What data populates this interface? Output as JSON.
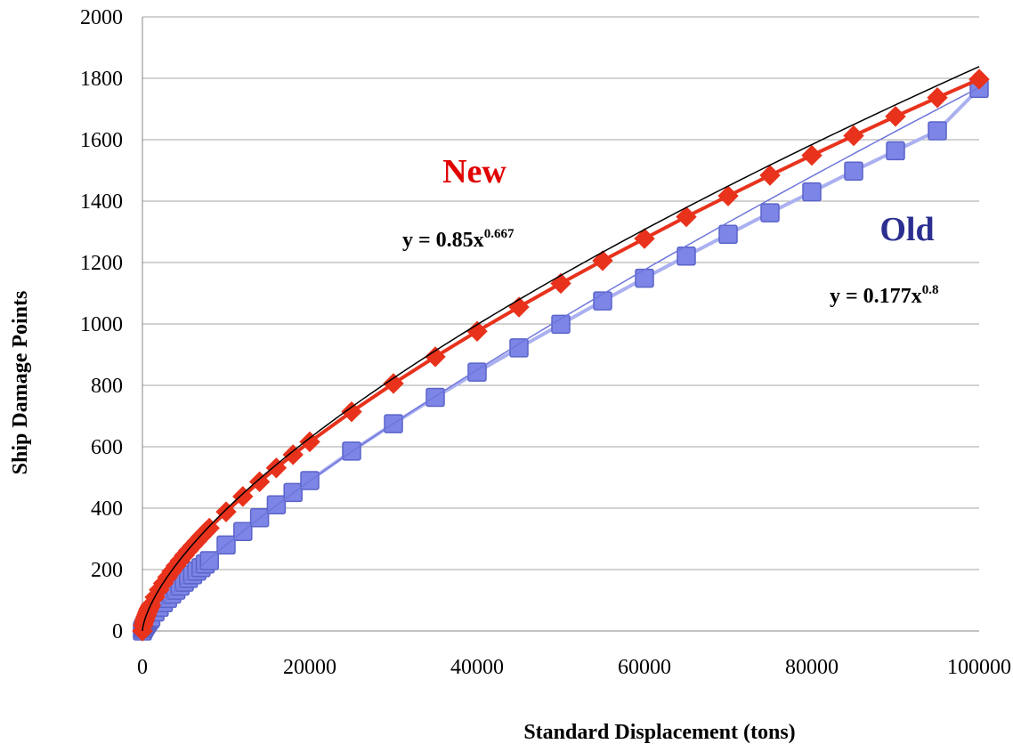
{
  "chart_data": {
    "type": "scatter",
    "title": "",
    "xlabel": "Standard Displacement (tons)",
    "ylabel": "Ship Damage Points",
    "xlim": [
      0,
      100000
    ],
    "ylim": [
      0,
      2000
    ],
    "x_ticks": [
      "0",
      "20000",
      "40000",
      "60000",
      "80000",
      "100000"
    ],
    "y_ticks": [
      "0",
      "200",
      "400",
      "600",
      "800",
      "1000",
      "1200",
      "1400",
      "1600",
      "1800",
      "2000"
    ],
    "grid": "horizontal",
    "colors": {
      "new_marker": "#e8321c",
      "new_line": "#e8321c",
      "new_trend": "#000000",
      "old_marker": "#7d86e6",
      "old_marker_edge": "#5a63c8",
      "old_line": "#aab0f0",
      "old_trend": "#6e76dc",
      "new_label": "#e00000",
      "old_label": "#2b2f90",
      "grid": "#a6a6a6"
    },
    "annotations": [
      {
        "id": "new",
        "text": "New",
        "color": "#e00000"
      },
      {
        "id": "old",
        "text": "Old",
        "color": "#2b2f90"
      },
      {
        "id": "new_eq",
        "base": "y = 0.85x",
        "exp": "0.667"
      },
      {
        "id": "old_eq",
        "base": "y = 0.177x",
        "exp": "0.8"
      }
    ],
    "x": [
      0,
      100,
      200,
      300,
      400,
      500,
      600,
      700,
      800,
      900,
      1000,
      1500,
      2000,
      2500,
      3000,
      3500,
      4000,
      4500,
      5000,
      5500,
      6000,
      6500,
      7000,
      7500,
      8000,
      10000,
      12000,
      14000,
      16000,
      18000,
      20000,
      25000,
      30000,
      35000,
      40000,
      45000,
      50000,
      55000,
      60000,
      65000,
      70000,
      75000,
      80000,
      85000,
      90000,
      95000,
      100000
    ],
    "series": [
      {
        "name": "New",
        "marker": "diamond",
        "trend": {
          "a": 0.85,
          "b": 0.667
        },
        "values": [
          0,
          18,
          29,
          38,
          46,
          53,
          60,
          67,
          73,
          78,
          84,
          110,
          134,
          155,
          175,
          194,
          212,
          229,
          246,
          262,
          277,
          292,
          307,
          321,
          335,
          388,
          438,
          486,
          531,
          574,
          616,
          714,
          806,
          893,
          976,
          1055,
          1132,
          1206,
          1278,
          1349,
          1417,
          1484,
          1549,
          1613,
          1676,
          1737,
          1797
        ]
      },
      {
        "name": "Old",
        "marker": "square",
        "trend": {
          "a": 0.177,
          "b": 0.8
        },
        "values": [
          0,
          7,
          12,
          17,
          21,
          25,
          29,
          33,
          37,
          40,
          44,
          62,
          77,
          92,
          106,
          120,
          133,
          146,
          159,
          171,
          183,
          195,
          206,
          218,
          229,
          280,
          324,
          369,
          411,
          451,
          490,
          586,
          675,
          761,
          843,
          922,
          999,
          1075,
          1149,
          1221,
          1292,
          1362,
          1430,
          1498,
          1564,
          1629,
          1767
        ]
      }
    ]
  }
}
